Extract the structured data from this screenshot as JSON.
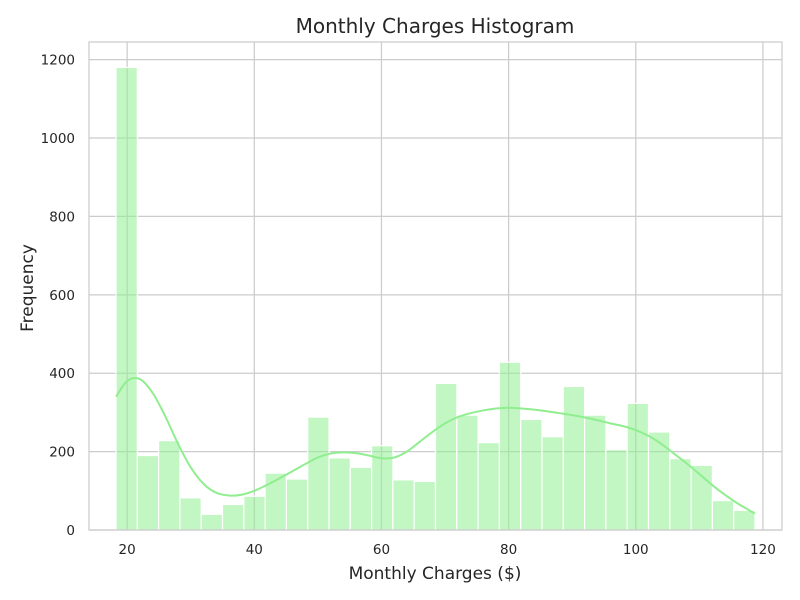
{
  "chart_data": {
    "type": "bar",
    "title": "Monthly Charges Histogram",
    "xlabel": "Monthly Charges ($)",
    "ylabel": "Frequency",
    "xlim": [
      14,
      123
    ],
    "ylim": [
      0,
      1245
    ],
    "grid": true,
    "x_ticks": [
      20,
      40,
      60,
      80,
      100,
      120
    ],
    "y_ticks": [
      0,
      200,
      400,
      600,
      800,
      1000,
      1200
    ],
    "bin_edges": [
      18.25,
      21.6,
      24.95,
      28.3,
      31.65,
      35.0,
      38.35,
      41.7,
      45.05,
      48.4,
      51.75,
      55.1,
      58.45,
      61.8,
      65.15,
      68.5,
      71.85,
      75.2,
      78.55,
      81.9,
      85.25,
      88.6,
      91.95,
      95.3,
      98.65,
      102.0,
      105.35,
      108.7,
      112.05,
      115.4,
      118.75
    ],
    "values": [
      1180,
      190,
      228,
      82,
      40,
      65,
      86,
      145,
      130,
      288,
      184,
      160,
      215,
      128,
      124,
      374,
      293,
      223,
      428,
      282,
      238,
      366,
      293,
      205,
      323,
      250,
      182,
      165,
      75,
      50
    ],
    "kde": {
      "x": [
        18.25,
        20,
        22,
        24,
        26,
        28,
        30,
        32,
        34,
        36,
        38,
        40,
        42,
        44,
        46,
        48,
        50,
        52,
        54,
        56,
        58,
        60,
        62,
        64,
        66,
        68,
        70,
        72,
        74,
        76,
        78,
        80,
        82,
        84,
        86,
        88,
        90,
        92,
        94,
        96,
        98,
        100,
        102,
        104,
        106,
        108,
        110,
        112,
        114,
        116,
        118.75
      ],
      "y": [
        340,
        380,
        385,
        350,
        290,
        220,
        160,
        118,
        95,
        88,
        90,
        100,
        115,
        132,
        150,
        168,
        185,
        195,
        198,
        196,
        190,
        183,
        185,
        200,
        225,
        250,
        272,
        288,
        298,
        305,
        310,
        312,
        310,
        307,
        303,
        298,
        293,
        287,
        280,
        272,
        265,
        255,
        240,
        220,
        195,
        170,
        143,
        115,
        90,
        68,
        42
      ]
    },
    "bar_color": "#90ee90",
    "line_color": "#90ee90"
  }
}
